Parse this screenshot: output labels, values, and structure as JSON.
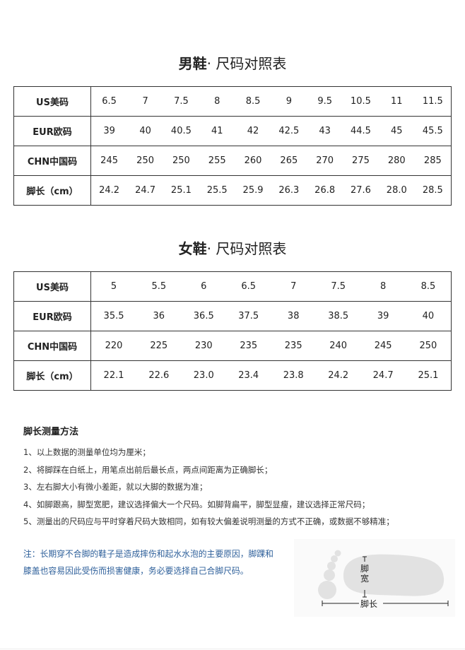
{
  "men": {
    "title_bold": "男鞋",
    "title_rest": "· 尺码对照表",
    "rows": [
      {
        "label": "US美码",
        "values": [
          "6.5",
          "7",
          "7.5",
          "8",
          "8.5",
          "9",
          "9.5",
          "10.5",
          "11",
          "11.5"
        ]
      },
      {
        "label": "EUR欧码",
        "values": [
          "39",
          "40",
          "40.5",
          "41",
          "42",
          "42.5",
          "43",
          "44.5",
          "45",
          "45.5"
        ]
      },
      {
        "label": "CHN中国码",
        "values": [
          "245",
          "250",
          "250",
          "255",
          "260",
          "265",
          "270",
          "275",
          "280",
          "285"
        ]
      },
      {
        "label": "脚长（cm）",
        "values": [
          "24.2",
          "24.7",
          "25.1",
          "25.5",
          "25.9",
          "26.3",
          "26.8",
          "27.6",
          "28.0",
          "28.5"
        ]
      }
    ]
  },
  "women": {
    "title_bold": "女鞋",
    "title_rest": "· 尺码对照表",
    "rows": [
      {
        "label": "US美码",
        "values": [
          "5",
          "5.5",
          "6",
          "6.5",
          "7",
          "7.5",
          "8",
          "8.5"
        ]
      },
      {
        "label": "EUR欧码",
        "values": [
          "35.5",
          "36",
          "36.5",
          "37.5",
          "38",
          "38.5",
          "39",
          "40"
        ]
      },
      {
        "label": "CHN中国码",
        "values": [
          "220",
          "225",
          "230",
          "235",
          "235",
          "240",
          "245",
          "250"
        ]
      },
      {
        "label": "脚长（cm）",
        "values": [
          "22.1",
          "22.6",
          "23.0",
          "23.4",
          "23.8",
          "24.2",
          "24.7",
          "25.1"
        ]
      }
    ]
  },
  "method": {
    "title": "脚长测量方法",
    "items": [
      "1、以上数据的测量单位均为厘米；",
      "2、将脚踩在白纸上，用笔点出前后最长点，两点间距离为正确脚长；",
      "3、左右脚大小有微小差距，就以大脚的数据为准；",
      "4、如脚跟高，脚型宽肥，建议选择偏大一个尺码。如脚背扁平，脚型显瘦，建议选择正常尺码；",
      "5、测量出的尺码应与平时穿着尺码大致相同，如有较大偏差说明测量的方式不正确，或数据不够精准；"
    ]
  },
  "note": "注：长期穿不合脚的鞋子是造成摔伤和起水水泡的主要原因，脚踝和膝盖也容易因此受伤而损害健康，务必要选择自己合脚尺码。",
  "diagram": {
    "width_label": "脚宽",
    "length_label": "脚长"
  },
  "colors": {
    "note": "#2d5f9a"
  }
}
